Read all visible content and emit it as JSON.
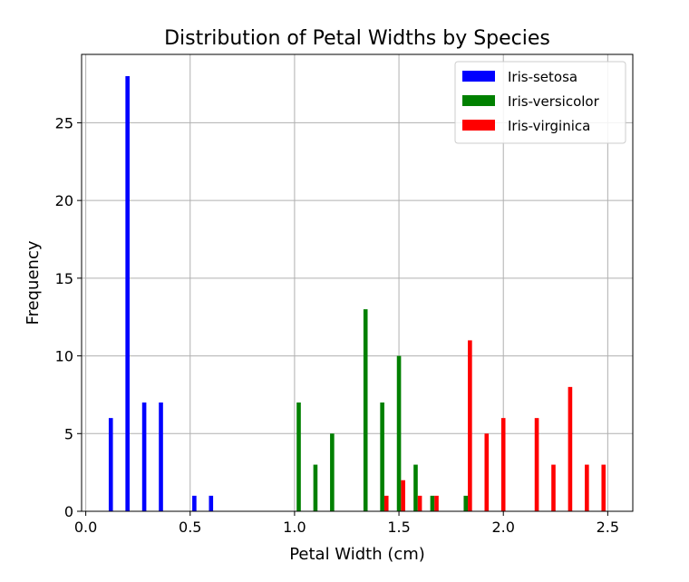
{
  "chart_data": {
    "type": "bar",
    "title": "Distribution of Petal Widths by Species",
    "xlabel": "Petal Width (cm)",
    "ylabel": "Frequency",
    "xlim": [
      -0.02,
      2.62
    ],
    "ylim": [
      0,
      29.4
    ],
    "xticks": [
      0.0,
      0.5,
      1.0,
      1.5,
      2.0,
      2.5
    ],
    "xtick_labels": [
      "0.0",
      "0.5",
      "1.0",
      "1.5",
      "2.0",
      "2.5"
    ],
    "yticks": [
      0,
      5,
      10,
      15,
      20,
      25
    ],
    "ytick_labels": [
      "0",
      "5",
      "10",
      "15",
      "20",
      "25"
    ],
    "grid": true,
    "legend_position": "top-right",
    "bar_width": 0.02,
    "series": [
      {
        "name": "Iris-setosa",
        "color": "#0000ff",
        "x": [
          0.12,
          0.2,
          0.28,
          0.36,
          0.52,
          0.6
        ],
        "values": [
          6,
          28,
          7,
          7,
          1,
          1
        ]
      },
      {
        "name": "Iris-versicolor",
        "color": "#008000",
        "x": [
          1.02,
          1.1,
          1.18,
          1.34,
          1.42,
          1.5,
          1.58,
          1.66,
          1.82
        ],
        "values": [
          7,
          3,
          5,
          13,
          7,
          10,
          3,
          1,
          1
        ]
      },
      {
        "name": "Iris-virginica",
        "color": "#ff0000",
        "x": [
          1.44,
          1.52,
          1.6,
          1.68,
          1.84,
          1.92,
          2.0,
          2.16,
          2.24,
          2.32,
          2.4,
          2.48
        ],
        "values": [
          1,
          2,
          1,
          1,
          11,
          5,
          6,
          6,
          3,
          8,
          3,
          3
        ]
      }
    ]
  }
}
